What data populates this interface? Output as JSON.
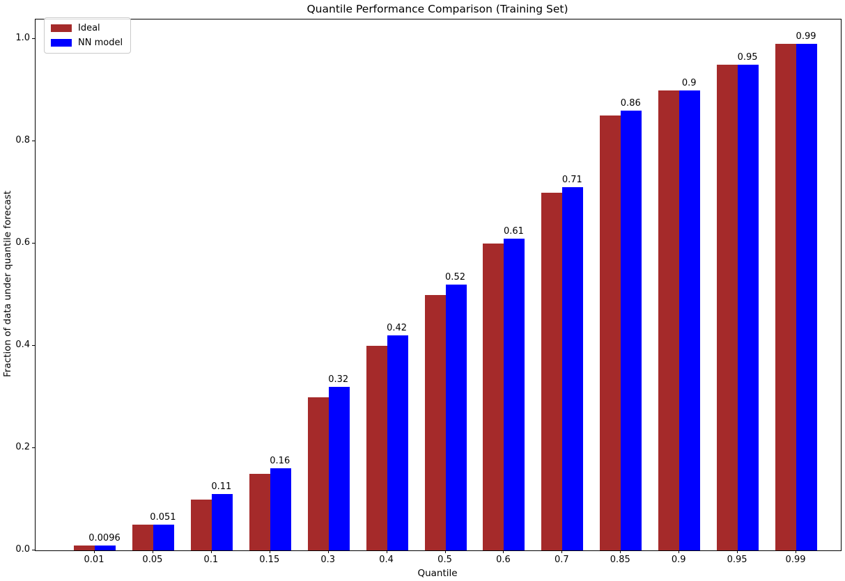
{
  "chart_data": {
    "type": "bar",
    "title": "Quantile Performance Comparison (Training Set)",
    "xlabel": "Quantile",
    "ylabel": "Fraction of data under quantile forecast",
    "categories": [
      "0.01",
      "0.05",
      "0.1",
      "0.15",
      "0.3",
      "0.4",
      "0.5",
      "0.6",
      "0.7",
      "0.85",
      "0.9",
      "0.95",
      "0.99"
    ],
    "series": [
      {
        "name": "Ideal",
        "color": "#A52A2A",
        "values": [
          0.01,
          0.05,
          0.1,
          0.15,
          0.3,
          0.4,
          0.5,
          0.6,
          0.7,
          0.85,
          0.9,
          0.95,
          0.99
        ]
      },
      {
        "name": "NN model",
        "color": "#0000FF",
        "values": [
          0.0096,
          0.051,
          0.11,
          0.16,
          0.32,
          0.42,
          0.52,
          0.61,
          0.71,
          0.86,
          0.9,
          0.95,
          0.99
        ]
      }
    ],
    "bar_labels": [
      "0.0096",
      "0.051",
      "0.11",
      "0.16",
      "0.32",
      "0.42",
      "0.52",
      "0.61",
      "0.71",
      "0.86",
      "0.9",
      "0.95",
      "0.99"
    ],
    "bar_labels_on_series": "NN model",
    "yticks": [
      "0.0",
      "0.2",
      "0.4",
      "0.6",
      "0.8",
      "1.0"
    ],
    "ylim": [
      0.0,
      1.038
    ],
    "legend_position": "upper left",
    "grid": false
  }
}
